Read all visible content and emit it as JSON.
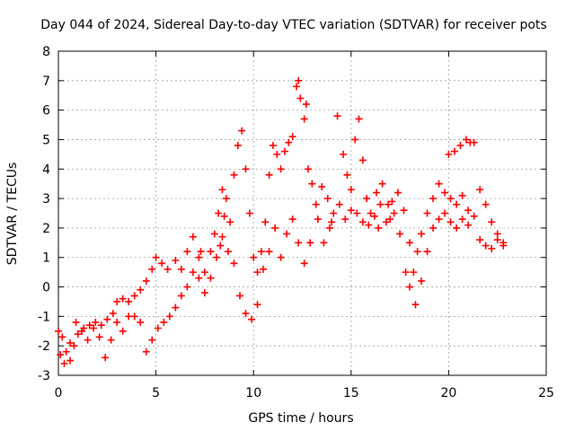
{
  "chart_data": {
    "type": "scatter",
    "title": "Day 044 of 2024, Sidereal Day-to-day VTEC variation (SDTVAR) for receiver pots",
    "xlabel": "GPS time / hours",
    "ylabel": "SDTVAR / TECUs",
    "xlim": [
      0,
      25
    ],
    "ylim": [
      -3,
      8
    ],
    "xticks": [
      0,
      5,
      10,
      15,
      20,
      25
    ],
    "yticks": [
      -3,
      -2,
      -1,
      0,
      1,
      2,
      3,
      4,
      5,
      6,
      7,
      8
    ],
    "grid": true,
    "marker": "+",
    "series": [
      {
        "name": "SDTVAR",
        "color": "#ff0000",
        "points": [
          [
            0.0,
            -1.5
          ],
          [
            0.2,
            -1.7
          ],
          [
            0.4,
            -2.2
          ],
          [
            0.6,
            -2.5
          ],
          [
            0.8,
            -2.0
          ],
          [
            1.0,
            -1.6
          ],
          [
            1.3,
            -1.4
          ],
          [
            1.6,
            -1.3
          ],
          [
            1.9,
            -1.2
          ],
          [
            2.2,
            -1.3
          ],
          [
            2.5,
            -1.1
          ],
          [
            2.8,
            -0.9
          ],
          [
            3.0,
            -0.5
          ],
          [
            3.3,
            -0.4
          ],
          [
            3.6,
            -0.5
          ],
          [
            3.9,
            -0.3
          ],
          [
            4.2,
            -0.1
          ],
          [
            4.5,
            0.2
          ],
          [
            4.8,
            0.6
          ],
          [
            5.0,
            1.0
          ],
          [
            5.3,
            0.8
          ],
          [
            5.6,
            0.6
          ],
          [
            6.0,
            0.9
          ],
          [
            6.3,
            0.6
          ],
          [
            6.6,
            1.2
          ],
          [
            6.9,
            1.7
          ],
          [
            7.2,
            1.0
          ],
          [
            7.5,
            0.5
          ],
          [
            7.8,
            1.2
          ],
          [
            8.0,
            1.8
          ],
          [
            8.2,
            2.5
          ],
          [
            8.4,
            3.3
          ],
          [
            8.6,
            3.0
          ],
          [
            8.8,
            2.2
          ],
          [
            9.0,
            3.8
          ],
          [
            9.2,
            4.8
          ],
          [
            9.4,
            5.3
          ],
          [
            9.6,
            4.0
          ],
          [
            9.8,
            2.5
          ],
          [
            10.0,
            1.0
          ],
          [
            10.2,
            0.5
          ],
          [
            10.4,
            1.2
          ],
          [
            10.6,
            2.2
          ],
          [
            10.8,
            3.8
          ],
          [
            11.0,
            4.8
          ],
          [
            11.2,
            4.5
          ],
          [
            11.4,
            4.0
          ],
          [
            11.6,
            4.6
          ],
          [
            11.8,
            4.9
          ],
          [
            12.0,
            5.1
          ],
          [
            12.2,
            6.8
          ],
          [
            12.4,
            6.4
          ],
          [
            12.6,
            5.7
          ],
          [
            12.8,
            4.0
          ],
          [
            13.0,
            3.5
          ],
          [
            13.3,
            2.3
          ],
          [
            13.6,
            1.5
          ],
          [
            14.0,
            2.2
          ],
          [
            14.3,
            5.8
          ],
          [
            14.6,
            4.5
          ],
          [
            14.8,
            3.8
          ],
          [
            15.0,
            3.3
          ],
          [
            15.2,
            5.0
          ],
          [
            15.4,
            5.7
          ],
          [
            15.6,
            4.3
          ],
          [
            15.8,
            3.0
          ],
          [
            16.0,
            2.5
          ],
          [
            16.3,
            3.2
          ],
          [
            16.6,
            3.5
          ],
          [
            16.9,
            2.8
          ],
          [
            17.2,
            2.5
          ],
          [
            17.5,
            1.8
          ],
          [
            17.8,
            0.5
          ],
          [
            18.0,
            0.0
          ],
          [
            18.2,
            0.5
          ],
          [
            18.4,
            1.2
          ],
          [
            18.6,
            1.8
          ],
          [
            18.9,
            2.5
          ],
          [
            19.2,
            3.0
          ],
          [
            19.5,
            3.5
          ],
          [
            19.8,
            3.2
          ],
          [
            20.1,
            3.0
          ],
          [
            20.4,
            2.8
          ],
          [
            20.7,
            3.1
          ],
          [
            21.0,
            2.6
          ],
          [
            21.3,
            4.9
          ],
          [
            21.6,
            3.3
          ],
          [
            21.9,
            2.8
          ],
          [
            22.2,
            2.2
          ],
          [
            22.5,
            1.8
          ],
          [
            22.8,
            1.5
          ],
          [
            0.1,
            -2.3
          ],
          [
            0.3,
            -2.6
          ],
          [
            0.6,
            -1.9
          ],
          [
            0.9,
            -1.2
          ],
          [
            1.2,
            -1.5
          ],
          [
            1.5,
            -1.8
          ],
          [
            1.8,
            -1.4
          ],
          [
            2.1,
            -1.7
          ],
          [
            2.4,
            -2.4
          ],
          [
            2.7,
            -1.8
          ],
          [
            3.0,
            -1.2
          ],
          [
            3.3,
            -1.5
          ],
          [
            3.6,
            -1.0
          ],
          [
            3.9,
            -1.0
          ],
          [
            4.2,
            -1.2
          ],
          [
            4.5,
            -2.2
          ],
          [
            4.8,
            -1.8
          ],
          [
            5.1,
            -1.4
          ],
          [
            5.4,
            -1.2
          ],
          [
            5.7,
            -1.0
          ],
          [
            6.0,
            -0.7
          ],
          [
            6.3,
            -0.3
          ],
          [
            6.6,
            0.0
          ],
          [
            6.9,
            0.5
          ],
          [
            7.2,
            0.3
          ],
          [
            7.5,
            -0.2
          ],
          [
            7.8,
            0.3
          ],
          [
            8.1,
            1.0
          ],
          [
            8.4,
            1.7
          ],
          [
            8.7,
            1.2
          ],
          [
            9.0,
            0.8
          ],
          [
            9.3,
            -0.3
          ],
          [
            9.6,
            -0.9
          ],
          [
            9.9,
            -1.1
          ],
          [
            10.2,
            -0.6
          ],
          [
            10.5,
            0.6
          ],
          [
            10.8,
            1.2
          ],
          [
            11.1,
            2.0
          ],
          [
            11.4,
            1.0
          ],
          [
            11.7,
            1.8
          ],
          [
            12.0,
            2.3
          ],
          [
            12.3,
            1.5
          ],
          [
            12.6,
            0.8
          ],
          [
            12.9,
            1.5
          ],
          [
            13.2,
            2.8
          ],
          [
            13.5,
            3.4
          ],
          [
            13.8,
            3.0
          ],
          [
            14.1,
            2.5
          ],
          [
            14.4,
            2.8
          ],
          [
            14.7,
            2.3
          ],
          [
            15.0,
            2.6
          ],
          [
            15.3,
            2.5
          ],
          [
            15.6,
            2.2
          ],
          [
            15.9,
            2.1
          ],
          [
            16.2,
            2.4
          ],
          [
            16.5,
            2.8
          ],
          [
            16.8,
            2.2
          ],
          [
            17.1,
            2.9
          ],
          [
            17.4,
            3.2
          ],
          [
            17.7,
            2.6
          ],
          [
            18.0,
            1.5
          ],
          [
            18.3,
            -0.6
          ],
          [
            18.6,
            0.2
          ],
          [
            18.9,
            1.2
          ],
          [
            19.2,
            2.0
          ],
          [
            19.5,
            2.3
          ],
          [
            19.8,
            2.5
          ],
          [
            20.1,
            2.2
          ],
          [
            20.4,
            2.0
          ],
          [
            20.7,
            2.3
          ],
          [
            21.0,
            2.1
          ],
          [
            21.3,
            2.4
          ],
          [
            21.6,
            1.6
          ],
          [
            21.9,
            1.4
          ],
          [
            22.2,
            1.3
          ],
          [
            22.5,
            1.6
          ],
          [
            22.8,
            1.4
          ],
          [
            21.1,
            4.9
          ],
          [
            20.9,
            5.0
          ],
          [
            20.6,
            4.8
          ],
          [
            20.3,
            4.6
          ],
          [
            20.0,
            4.5
          ],
          [
            12.3,
            7.0
          ],
          [
            12.7,
            6.2
          ],
          [
            13.9,
            2.0
          ],
          [
            16.4,
            2.0
          ],
          [
            17.0,
            2.3
          ],
          [
            8.5,
            2.4
          ],
          [
            8.3,
            1.4
          ],
          [
            7.3,
            1.2
          ]
        ]
      }
    ]
  }
}
